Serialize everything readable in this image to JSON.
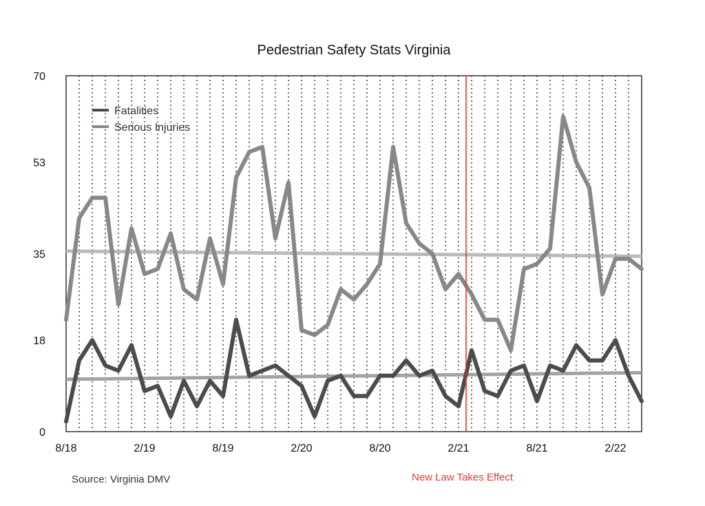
{
  "chart_data": {
    "type": "line",
    "title": "Pedestrian Safety Stats Virginia",
    "xlabel": "",
    "ylabel": "",
    "ylim": [
      0,
      70
    ],
    "yticks": [
      0,
      18,
      35,
      53,
      70
    ],
    "x": [
      "8/18",
      "9/18",
      "10/18",
      "11/18",
      "12/18",
      "1/19",
      "2/19",
      "3/19",
      "4/19",
      "5/19",
      "6/19",
      "7/19",
      "8/19",
      "9/19",
      "10/19",
      "11/19",
      "12/19",
      "1/20",
      "2/20",
      "3/20",
      "4/20",
      "5/20",
      "6/20",
      "7/20",
      "8/20",
      "9/20",
      "10/20",
      "11/20",
      "12/20",
      "1/21",
      "2/21",
      "3/21",
      "4/21",
      "5/21",
      "6/21",
      "7/21",
      "8/21",
      "9/21",
      "10/21",
      "11/21",
      "12/21",
      "1/22",
      "2/22",
      "3/22",
      "4/22"
    ],
    "x_tick_labels": [
      {
        "label": "8/18",
        "index": 0
      },
      {
        "label": "2/19",
        "index": 6
      },
      {
        "label": "8/19",
        "index": 12
      },
      {
        "label": "2/20",
        "index": 18
      },
      {
        "label": "8/20",
        "index": 24
      },
      {
        "label": "2/21",
        "index": 30
      },
      {
        "label": "8/21",
        "index": 36
      },
      {
        "label": "2/22",
        "index": 42
      }
    ],
    "series": [
      {
        "name": "Fatalities",
        "color": "#4a4c4f",
        "values": [
          2,
          14,
          18,
          13,
          12,
          17,
          8,
          9,
          3,
          10,
          5,
          10,
          7,
          22,
          11,
          12,
          13,
          11,
          9,
          3,
          10,
          11,
          7,
          7,
          11,
          11,
          14,
          11,
          12,
          7,
          5,
          16,
          8,
          7,
          12,
          13,
          6,
          13,
          12,
          17,
          14,
          14,
          18,
          11,
          6
        ]
      },
      {
        "name": "Serious Injuries",
        "color": "#86898c",
        "values": [
          22,
          42,
          46,
          46,
          25,
          40,
          31,
          32,
          39,
          28,
          26,
          38,
          29,
          50,
          55,
          56,
          38,
          49,
          20,
          19,
          21,
          28,
          26,
          29,
          33,
          56,
          41,
          37,
          35,
          28,
          31,
          27,
          22,
          22,
          16,
          32,
          33,
          36,
          62,
          53,
          48,
          27,
          34,
          34,
          32
        ]
      }
    ],
    "trend_lines": [
      {
        "series": "Serious Injuries",
        "start": 35.5,
        "end": 34.5,
        "color": "#b8babc"
      },
      {
        "series": "Fatalities",
        "start": 10.3,
        "end": 11.6,
        "color": "#a0a2a4"
      }
    ],
    "event_line": {
      "index": 31,
      "label": "New Law Takes Effect",
      "color": "#e03a2e"
    },
    "source": "Source: Virginia DMV",
    "grid": {
      "vertical_dotted": true,
      "horizontal": false
    },
    "legend": {
      "placement": "top-left"
    }
  }
}
